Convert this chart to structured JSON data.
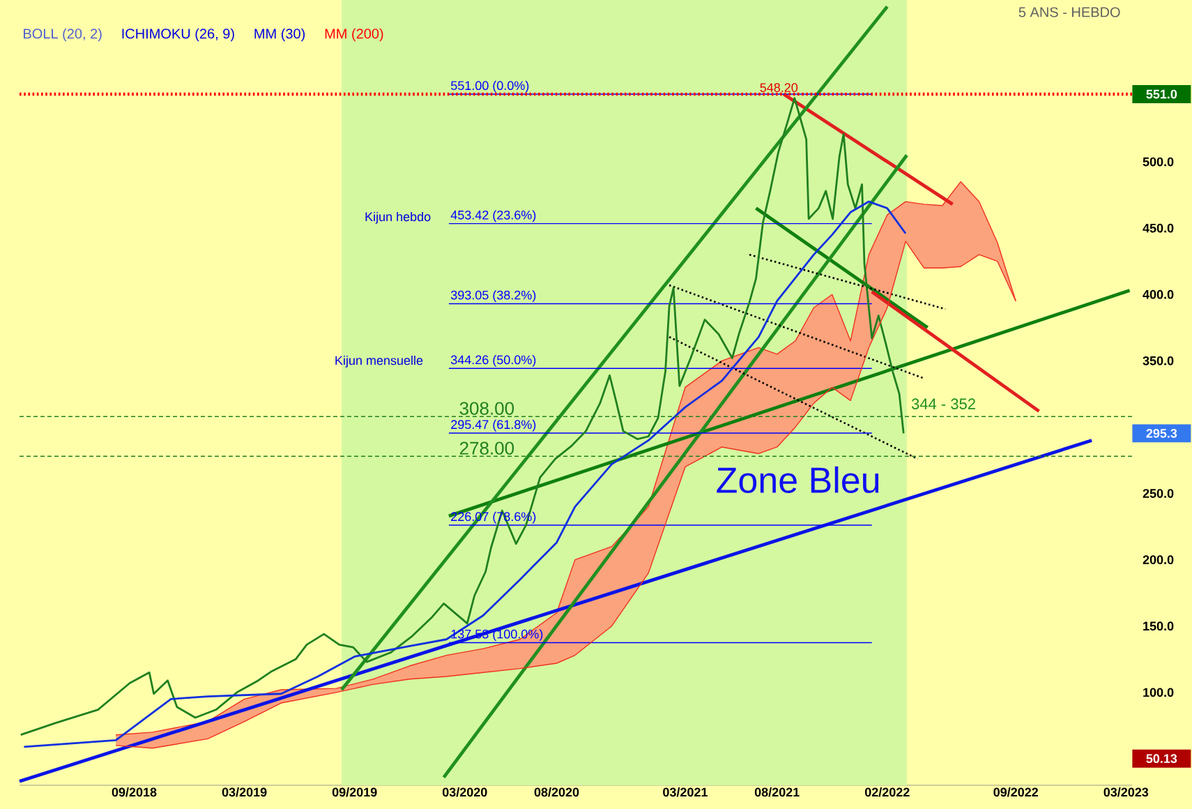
{
  "chart_data": {
    "type": "line",
    "subtitle": "5 ANS - HEBDO",
    "xlim": [
      "2018-02-24",
      "2023-03-11"
    ],
    "ylim": [
      30,
      622
    ],
    "xticks": [
      {
        "value": "2018-09-01",
        "label": "09/2018"
      },
      {
        "value": "2019-03-01",
        "label": "03/2019"
      },
      {
        "value": "2019-09-01",
        "label": "09/2019"
      },
      {
        "value": "2020-03-01",
        "label": "03/2020"
      },
      {
        "value": "2020-08-01",
        "label": "08/2020"
      },
      {
        "value": "2021-03-01",
        "label": "03/2021"
      },
      {
        "value": "2021-08-01",
        "label": "08/2021"
      },
      {
        "value": "2022-02-01",
        "label": "02/2022"
      },
      {
        "value": "2022-09-01",
        "label": "09/2022"
      },
      {
        "value": "2023-03-01",
        "label": "03/2023"
      }
    ],
    "yticks": [
      {
        "value": 100,
        "label": "100.0"
      },
      {
        "value": 150,
        "label": "150.0"
      },
      {
        "value": 200,
        "label": "200.0"
      },
      {
        "value": 250,
        "label": "250.0"
      },
      {
        "value": 350,
        "label": "350.0"
      },
      {
        "value": 400,
        "label": "400.0"
      },
      {
        "value": 450,
        "label": "450.0"
      },
      {
        "value": 500,
        "label": "500.0"
      }
    ],
    "bands": [
      {
        "axis": "x",
        "from": "2019-08-10",
        "to": "2022-03-03",
        "color": "#d4f8a0"
      }
    ],
    "ref_lines": [
      {
        "axis": "y",
        "value": 551,
        "color": "#ff0000",
        "line_style": "dotted"
      },
      {
        "axis": "y",
        "value": 308,
        "label": "308.00",
        "color": "#208020",
        "line_style": "dashed"
      },
      {
        "axis": "y",
        "value": 278,
        "label": "278.00",
        "color": "#208020",
        "line_style": "dashed"
      }
    ],
    "series": [
      {
        "color": "#208020",
        "x": [
          "2018-02-26",
          "2018-04-23",
          "2018-07-02",
          "2018-08-24",
          "2018-09-26",
          "2018-10-03",
          "2018-10-26",
          "2018-11-11",
          "2018-12-11",
          "2019-01-15",
          "2019-02-19",
          "2019-03-24",
          "2019-04-16",
          "2019-05-25",
          "2019-06-13",
          "2019-07-11",
          "2019-08-06",
          "2019-08-29",
          "2019-09-21",
          "2019-10-30",
          "2019-12-04",
          "2020-01-08",
          "2020-01-27",
          "2020-03-05",
          "2020-03-17",
          "2020-04-05",
          "2020-04-14",
          "2020-05-02",
          "2020-05-25",
          "2020-06-11",
          "2020-07-04",
          "2020-07-29",
          "2020-08-26",
          "2020-09-19",
          "2020-10-12",
          "2020-10-28",
          "2020-11-09",
          "2020-11-20",
          "2020-12-13",
          "2021-01-01",
          "2021-01-17",
          "2021-01-29",
          "2021-02-05",
          "2021-02-12",
          "2021-02-22",
          "2021-03-10",
          "2021-04-03",
          "2021-04-26",
          "2021-05-18",
          "2021-05-29",
          "2021-06-16",
          "2021-06-27",
          "2021-07-08",
          "2021-07-20",
          "2021-08-03",
          "2021-08-19",
          "2021-08-30",
          "2021-09-19",
          "2021-09-23",
          "2021-10-09",
          "2021-10-21",
          "2021-11-02",
          "2021-11-13",
          "2021-11-20",
          "2021-11-27",
          "2021-12-09",
          "2021-12-20",
          "2021-12-24",
          "2022-01-06",
          "2022-01-17",
          "2022-01-29",
          "2022-02-10",
          "2022-02-21",
          "2022-02-28"
        ],
        "values": [
          68,
          77,
          87,
          107,
          115,
          99,
          109,
          89,
          81,
          87,
          100,
          109,
          116,
          125,
          136,
          144,
          136,
          134,
          123,
          130,
          142,
          157,
          167,
          152,
          173,
          191,
          209,
          237,
          212,
          226,
          262,
          276,
          286,
          297,
          318,
          339,
          318,
          297,
          291,
          293,
          307,
          342,
          391,
          405,
          331,
          352,
          381,
          370,
          352,
          370,
          394,
          412,
          454,
          478,
          507,
          531,
          548,
          517,
          457,
          465,
          478,
          457,
          504,
          521,
          483,
          465,
          483,
          423,
          367,
          384,
          363,
          342,
          325,
          295.3
        ]
      },
      {
        "color": "#1030e0",
        "x": [
          "2018-03",
          "2018-08",
          "2018-11",
          "2019-01",
          "2019-05",
          "2019-07",
          "2019-09",
          "2019-12",
          "2020-02",
          "2020-04",
          "2020-06",
          "2020-08",
          "2020-09",
          "2020-11",
          "2021-01",
          "2021-03",
          "2021-05",
          "2021-07",
          "2021-08",
          "2021-10",
          "2021-11",
          "2021-12",
          "2022-01",
          "2022-02",
          "2022-03"
        ],
        "values": [
          59,
          64,
          95,
          97,
          99,
          112,
          127,
          135,
          140,
          158,
          185,
          213,
          240,
          272,
          290,
          315,
          335,
          368,
          395,
          430,
          445,
          462,
          470,
          465,
          446
        ]
      },
      {
        "color": "#f03020",
        "x": [
          "2018-08",
          "2018-10",
          "2019-01",
          "2019-03",
          "2019-05",
          "2019-08",
          "2019-10",
          "2019-12",
          "2020-02",
          "2020-04",
          "2020-06",
          "2020-08",
          "2020-09",
          "2020-11",
          "2021-01",
          "2021-02",
          "2021-03",
          "2021-05",
          "2021-07",
          "2021-08",
          "2021-09",
          "2021-10",
          "2021-11",
          "2021-12",
          "2022-01",
          "2022-02",
          "2022-03",
          "2022-04",
          "2022-05",
          "2022-06",
          "2022-07",
          "2022-08",
          "2022-09"
        ],
        "values": [
          68,
          70,
          78,
          95,
          102,
          103,
          110,
          120,
          128,
          133,
          140,
          160,
          200,
          210,
          240,
          285,
          330,
          350,
          360,
          355,
          365,
          390,
          400,
          365,
          430,
          460,
          470,
          468,
          467,
          485,
          470,
          439,
          395
        ],
        "upper": [
          68,
          70,
          78,
          95,
          102,
          103,
          110,
          120,
          128,
          133,
          140,
          160,
          200,
          210,
          240,
          285,
          330,
          350,
          360,
          355,
          365,
          390,
          400,
          365,
          430,
          460,
          470,
          468,
          467,
          485,
          470,
          439,
          395
        ],
        "lower": [
          60,
          58,
          65,
          78,
          92,
          100,
          106,
          110,
          112,
          115,
          118,
          122,
          128,
          150,
          190,
          230,
          270,
          285,
          280,
          285,
          300,
          318,
          330,
          320,
          360,
          390,
          440,
          420,
          420,
          421,
          430,
          425,
          395
        ]
      },
      {
        "color": "#f03020",
        "x": [
          "2018-08",
          "2018-10",
          "2019-01",
          "2019-03",
          "2019-05",
          "2019-08",
          "2019-10",
          "2019-12",
          "2020-02",
          "2020-04",
          "2020-06",
          "2020-08",
          "2020-09",
          "2020-11",
          "2021-01",
          "2021-02",
          "2021-03",
          "2021-05",
          "2021-07",
          "2021-08",
          "2021-09",
          "2021-10",
          "2021-11",
          "2021-12",
          "2022-01",
          "2022-02",
          "2022-03",
          "2022-04",
          "2022-05",
          "2022-06",
          "2022-07",
          "2022-08",
          "2022-09"
        ],
        "values": [
          60,
          58,
          65,
          78,
          92,
          100,
          106,
          110,
          112,
          115,
          118,
          122,
          128,
          150,
          190,
          230,
          270,
          285,
          280,
          285,
          300,
          318,
          330,
          320,
          360,
          390,
          440,
          420,
          420,
          421,
          430,
          425,
          395
        ]
      },
      {
        "color": "#0a14e6",
        "x": [
          "2018-02-24",
          "2023-01-05"
        ],
        "values": [
          33,
          290
        ]
      },
      {
        "color": "#108010",
        "x": [
          "2020-02-05",
          "2023-03-07"
        ],
        "values": [
          233,
          403
        ]
      },
      {
        "color": "#108010",
        "x": [
          "2021-06-27",
          "2022-04-07"
        ],
        "values": [
          465,
          375
        ]
      },
      {
        "color": "#e02020",
        "x": [
          "2021-08-12",
          "2022-05-18"
        ],
        "values": [
          551,
          468
        ]
      },
      {
        "color": "#e02020",
        "x": [
          "2022-01-06",
          "2022-10-09"
        ],
        "values": [
          402,
          312
        ]
      },
      {
        "color": "#209020",
        "x": [
          "2019-08-10",
          "2022-02-01"
        ],
        "values": [
          102,
          617
        ]
      },
      {
        "color": "#209020",
        "x": [
          "2020-01-27",
          "2022-03-03"
        ],
        "values": [
          36,
          505
        ]
      },
      {
        "color": "#000000",
        "line_style": "dotted",
        "x": [
          "2021-02-05",
          "2022-03-30"
        ],
        "values": [
          407,
          337
        ]
      },
      {
        "color": "#000000",
        "line_style": "dotted",
        "x": [
          "2021-06-16",
          "2022-05-06"
        ],
        "values": [
          430,
          389
        ]
      },
      {
        "color": "#000000",
        "line_style": "dotted",
        "x": [
          "2021-02-05",
          "2022-03-21"
        ],
        "values": [
          368,
          276
        ]
      },
      {
        "name": "551.00  (0.0%)",
        "color": "#0000ff",
        "x": [
          "2020-02-05",
          "2022-01-06"
        ],
        "values": [
          551,
          551
        ]
      },
      {
        "name": "453.42  (23.6%)",
        "color": "#0000ff",
        "x": [
          "2020-02-05",
          "2022-01-06"
        ],
        "values": [
          453.42,
          453.42
        ]
      },
      {
        "name": "393.05  (38.2%)",
        "color": "#0000ff",
        "x": [
          "2020-02-05",
          "2022-01-06"
        ],
        "values": [
          393.05,
          393.05
        ]
      },
      {
        "name": "344.26  (50.0%)",
        "color": "#0000ff",
        "x": [
          "2020-02-05",
          "2022-01-06"
        ],
        "values": [
          344.26,
          344.26
        ]
      },
      {
        "name": "295.47  (61.8%)",
        "color": "#0000ff",
        "x": [
          "2020-02-05",
          "2022-01-06"
        ],
        "values": [
          295.47,
          295.47
        ]
      },
      {
        "name": "226.07  (78.6%)",
        "color": "#0000ff",
        "x": [
          "2020-02-05",
          "2022-01-06"
        ],
        "values": [
          226.07,
          226.07
        ]
      },
      {
        "name": "137.53  (100.0%)",
        "color": "#0000ff",
        "x": [
          "2020-02-05",
          "2022-01-06"
        ],
        "values": [
          137.53,
          137.53
        ]
      }
    ],
    "annotations": [
      "BOLL (20, 2)",
      "ICHIMOKU (26, 9)",
      "MM (30)",
      "MM (200)",
      {
        "text": "548.20",
        "x": "2021-08-04",
        "y": 548.2
      },
      "Kijun hebdo",
      "Kijun mensuelle",
      {
        "text": "344 - 352",
        "x": "2022-05-03",
        "y": 309
      },
      "Zone Bleu",
      {
        "text": "551.0",
        "y": 551
      },
      {
        "text": "295.3",
        "y": 295.3
      },
      {
        "text": "50.13",
        "y": 50.13
      }
    ]
  }
}
